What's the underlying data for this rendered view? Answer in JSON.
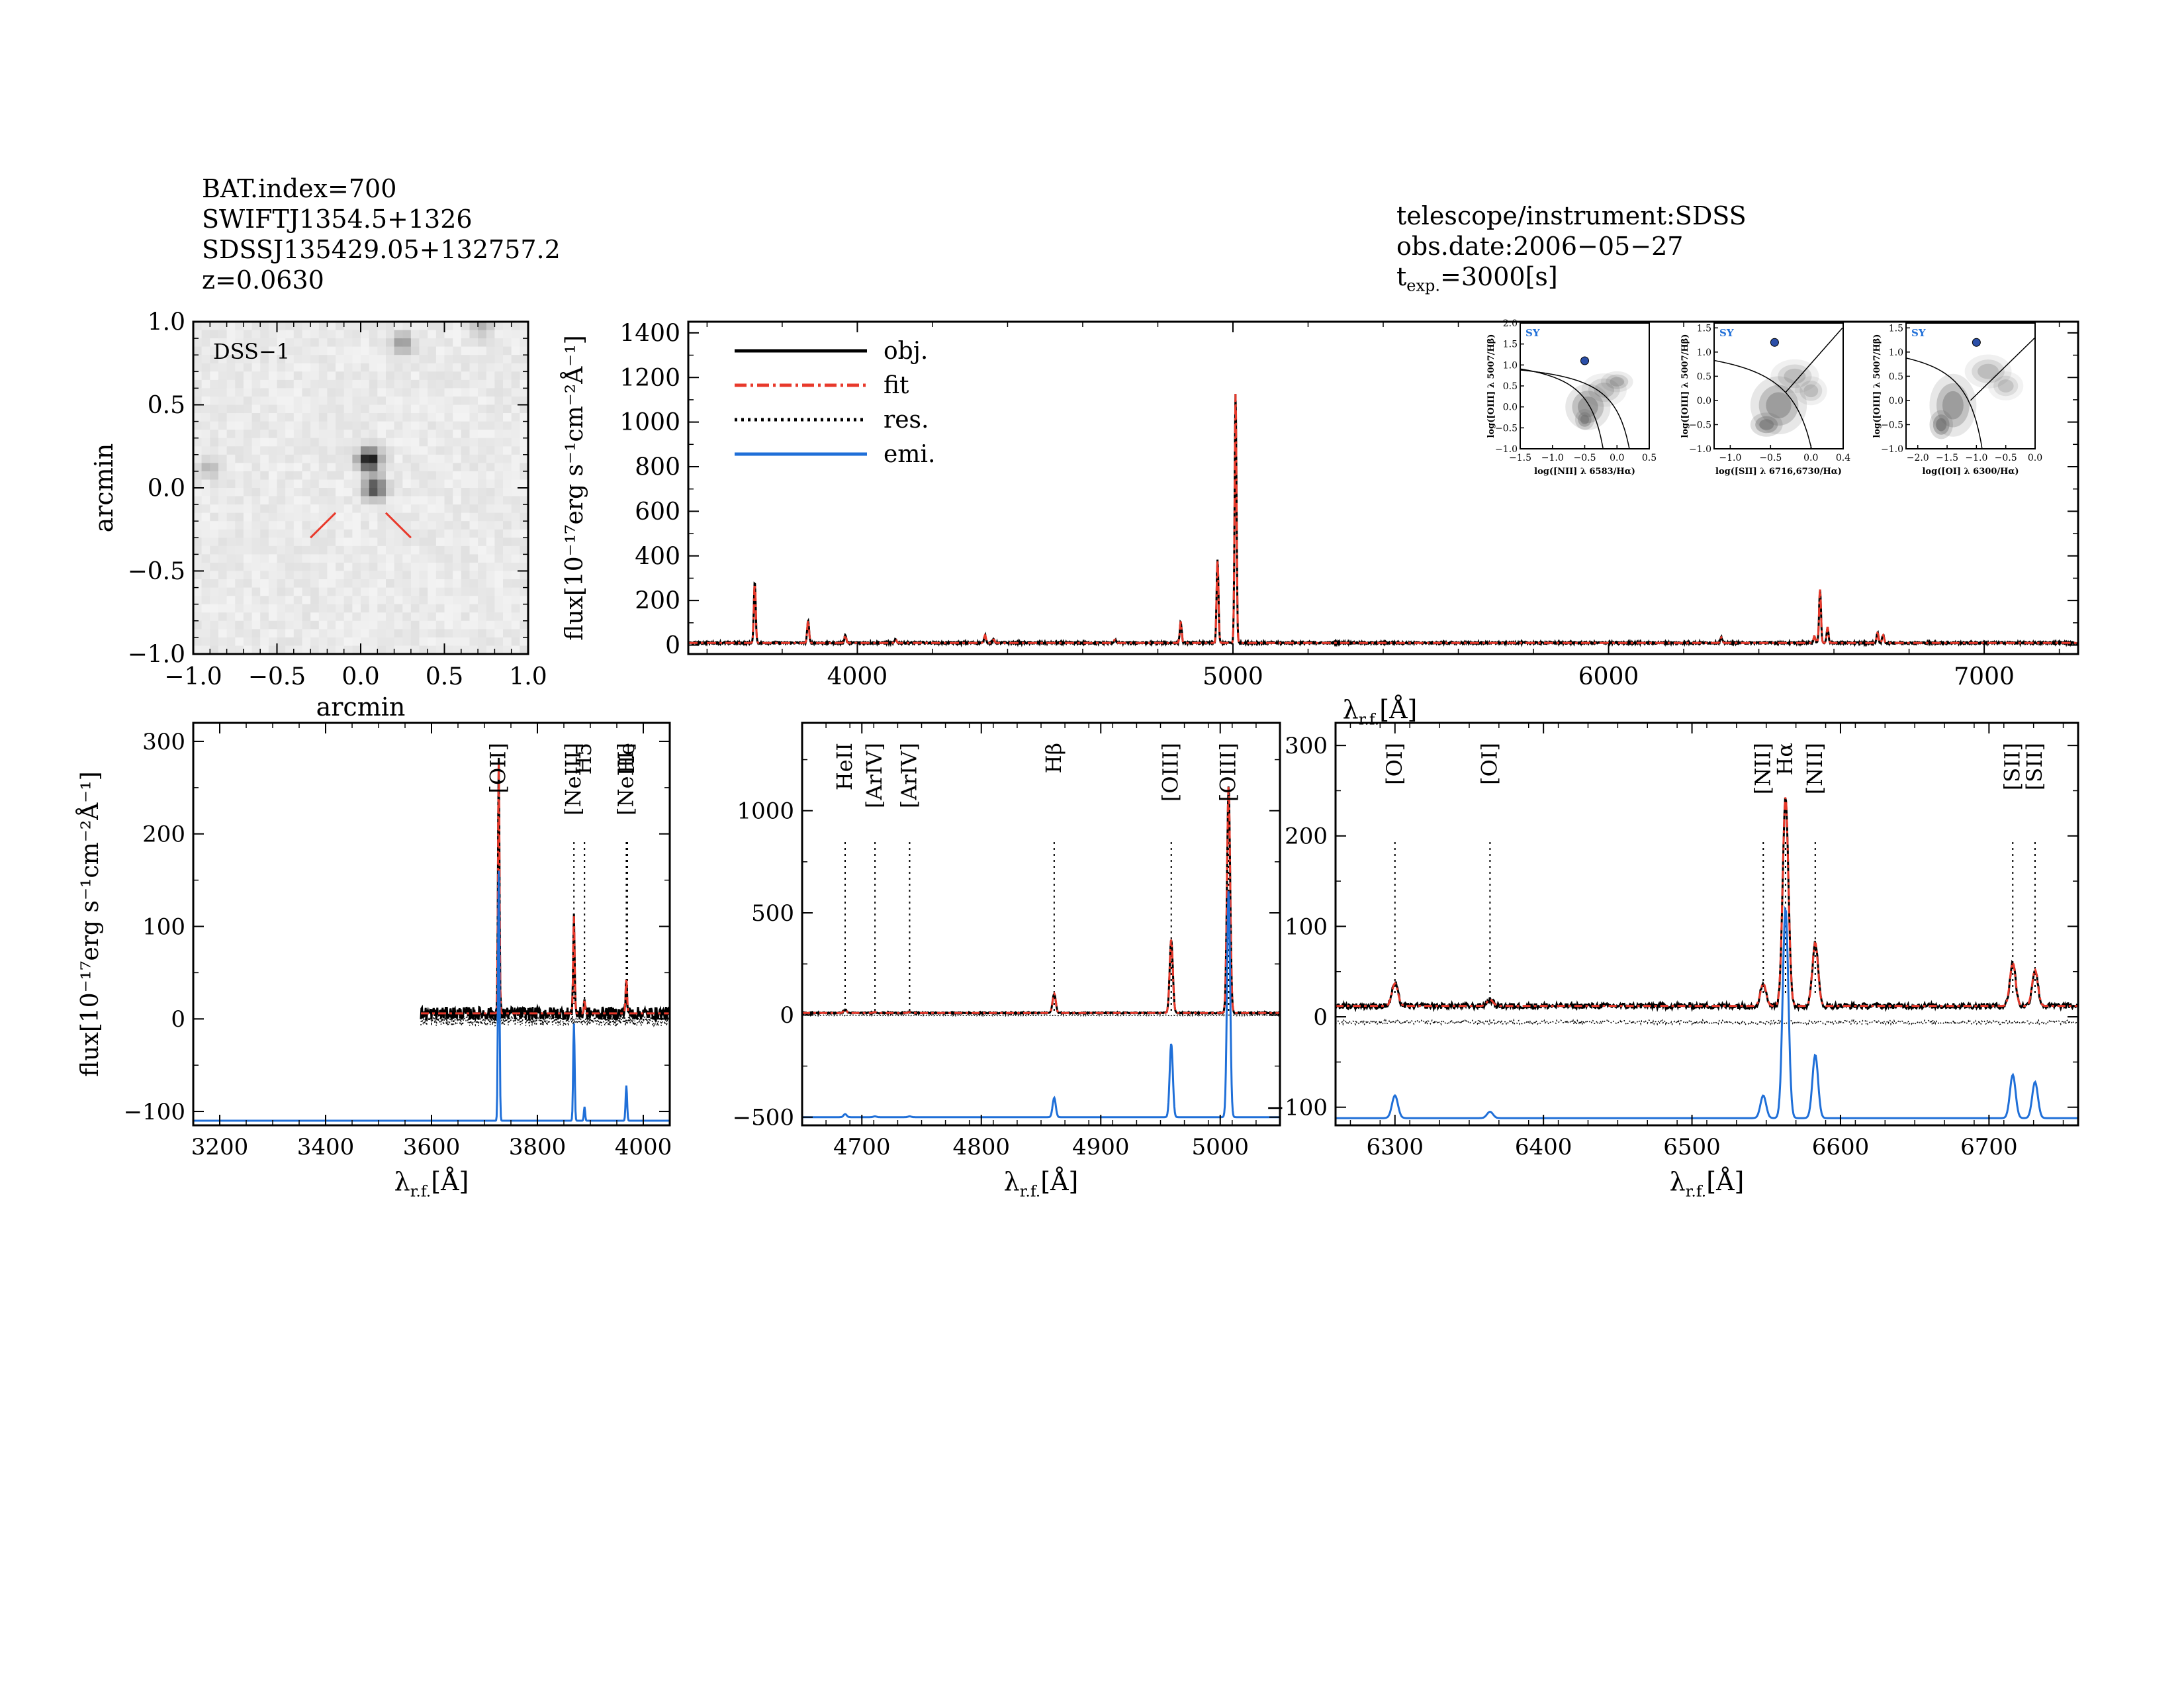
{
  "header_left": {
    "lines": [
      "BAT.index=700",
      "SWIFTJ1354.5+1326",
      "SDSSJ135429.05+132757.2",
      "z=0.0630"
    ]
  },
  "header_right": {
    "telescope": "telescope/instrument:SDSS",
    "obs_date": "obs.date:2006−05−27",
    "texp_t": "t",
    "texp_sub": "exp.",
    "texp_val": "=3000[s]"
  },
  "colors": {
    "obj": "#000000",
    "fit": "#e8392b",
    "res": "#000000",
    "emi": "#1f6fd8",
    "cutout_marker": "#e8392b",
    "bpt_point": "#2b4fa8",
    "bpt_label": "#1f6fd8"
  },
  "labels": {
    "flux_unit": "flux[10⁻¹⁷erg s⁻¹cm⁻²Å⁻¹]",
    "lambda_rf": "λ",
    "lambda_sub": "r.f.",
    "lambda_unit": "[Å]",
    "arcmin": "arcmin"
  },
  "chart_data": [
    {
      "type": "heatmap",
      "id": "image_cutout",
      "annotation": "DSS−1",
      "xlabel": "arcmin",
      "ylabel": "arcmin",
      "xlim": [
        -1.0,
        1.0
      ],
      "ylim": [
        -1.0,
        1.0
      ],
      "xticks": [
        "−1.0",
        "−0.5",
        "0.0",
        "0.5",
        "1.0"
      ],
      "yticks": [
        "−1.0",
        "−0.5",
        "0.0",
        "0.5",
        "1.0"
      ],
      "sources": [
        {
          "x": 0.05,
          "y": 0.17,
          "brightness": 1.0
        },
        {
          "x": 0.08,
          "y": 0.0,
          "brightness": 0.7
        },
        {
          "x": 0.25,
          "y": 0.87,
          "brightness": 0.35
        },
        {
          "x": -0.9,
          "y": 0.12,
          "brightness": 0.2
        },
        {
          "x": 0.72,
          "y": 0.97,
          "brightness": 0.25
        }
      ]
    },
    {
      "type": "line",
      "id": "full_spectrum",
      "xlabel": "λr.f.[Å]",
      "ylabel": "flux[10⁻¹⁷erg s⁻¹cm⁻²Å⁻¹]",
      "xlim": [
        3550,
        7250
      ],
      "ylim": [
        -40,
        1450
      ],
      "xticks": [
        4000,
        5000,
        6000,
        7000
      ],
      "yticks": [
        0,
        200,
        400,
        600,
        800,
        1000,
        1200,
        1400
      ],
      "legend": [
        "obj.",
        "fit",
        "res.",
        "emi."
      ],
      "lines": [
        {
          "center": 3727,
          "amplitude": 270,
          "sigma": 2.5
        },
        {
          "center": 3869,
          "amplitude": 100,
          "sigma": 2.5
        },
        {
          "center": 3968,
          "amplitude": 35,
          "sigma": 2.5
        },
        {
          "center": 4102,
          "amplitude": 15,
          "sigma": 2.5
        },
        {
          "center": 4340,
          "amplitude": 35,
          "sigma": 2.5
        },
        {
          "center": 4363,
          "amplitude": 15,
          "sigma": 2.5
        },
        {
          "center": 4686,
          "amplitude": 15,
          "sigma": 2.5
        },
        {
          "center": 4861,
          "amplitude": 95,
          "sigma": 2.5
        },
        {
          "center": 4959,
          "amplitude": 370,
          "sigma": 2.5
        },
        {
          "center": 5007,
          "amplitude": 1120,
          "sigma": 2.5
        },
        {
          "center": 6300,
          "amplitude": 25,
          "sigma": 2.5
        },
        {
          "center": 6548,
          "amplitude": 30,
          "sigma": 2.5
        },
        {
          "center": 6563,
          "amplitude": 240,
          "sigma": 2.5
        },
        {
          "center": 6583,
          "amplitude": 70,
          "sigma": 2.5
        },
        {
          "center": 6716,
          "amplitude": 45,
          "sigma": 2.5
        },
        {
          "center": 6731,
          "amplitude": 35,
          "sigma": 2.5
        }
      ],
      "continuum": 10
    },
    {
      "type": "scatter",
      "id": "bpt_nii",
      "badge": "SY",
      "xlabel": "log([NII] λ 6583/Hα)",
      "ylabel": "log([OIII] λ 5007/Hβ)",
      "xlim": [
        -1.5,
        0.5
      ],
      "ylim": [
        -1.0,
        2.0
      ],
      "xticks": [
        "−1.5",
        "−1.0",
        "−0.5",
        "0.0",
        "0.5"
      ],
      "yticks": [
        "−1.0",
        "−0.5",
        "0.0",
        "0.5",
        "1.0",
        "1.5",
        "2.0"
      ],
      "point": {
        "x": -0.5,
        "y": 1.1
      }
    },
    {
      "type": "scatter",
      "id": "bpt_sii",
      "badge": "SY",
      "xlabel": "log([SII] λ 6716,6730/Hα)",
      "ylabel": "log([OIII] λ 5007/Hβ)",
      "xlim": [
        -1.2,
        0.4
      ],
      "ylim": [
        -1.0,
        1.6
      ],
      "xticks": [
        "−1.0",
        "−0.5",
        "0.0",
        "0.4"
      ],
      "yticks": [
        "−1.0",
        "−0.5",
        "0.0",
        "0.5",
        "1.0",
        "1.5"
      ],
      "point": {
        "x": -0.45,
        "y": 1.2
      }
    },
    {
      "type": "scatter",
      "id": "bpt_oi",
      "badge": "SY",
      "xlabel": "log([OI] λ 6300/Hα)",
      "ylabel": "log([OIII] λ 5007/Hβ)",
      "xlim": [
        -2.2,
        0.0
      ],
      "ylim": [
        -1.0,
        1.6
      ],
      "xticks": [
        "−2.0",
        "−1.5",
        "−1.0",
        "−0.5",
        "0.0"
      ],
      "yticks": [
        "−1.0",
        "−0.5",
        "0.0",
        "0.5",
        "1.0",
        "1.5"
      ],
      "point": {
        "x": -1.0,
        "y": 1.2
      }
    },
    {
      "type": "line",
      "id": "zoom_blue",
      "xlabel": "λr.f.[Å]",
      "ylabel": "flux[10⁻¹⁷erg s⁻¹cm⁻²Å⁻¹]",
      "xlim": [
        3150,
        4050
      ],
      "ylim": [
        -115,
        320
      ],
      "xticks": [
        3200,
        3400,
        3600,
        3800,
        4000
      ],
      "yticks": [
        -100,
        0,
        100,
        200,
        300
      ],
      "data_start": 3580,
      "continuum": 6,
      "emi_offset": -110,
      "line_labels": [
        {
          "wave": 3727,
          "text": "[OII]"
        },
        {
          "wave": 3869,
          "text": "[NeIII]"
        },
        {
          "wave": 3889,
          "text": "H5"
        },
        {
          "wave": 3968,
          "text": "[NeIII]"
        },
        {
          "wave": 3970,
          "text": "He"
        }
      ],
      "lines": [
        {
          "center": 3727,
          "amplitude": 270,
          "sigma": 1.4
        },
        {
          "center": 3869,
          "amplitude": 105,
          "sigma": 1.4
        },
        {
          "center": 3889,
          "amplitude": 15,
          "sigma": 1.2
        },
        {
          "center": 3968,
          "amplitude": 38,
          "sigma": 1.4
        }
      ]
    },
    {
      "type": "line",
      "id": "zoom_hbeta",
      "xlabel": "λr.f.[Å]",
      "xlim": [
        4650,
        5050
      ],
      "ylim": [
        -540,
        1430
      ],
      "xticks": [
        4700,
        4800,
        4900,
        5000
      ],
      "yticks": [
        -500,
        0,
        500,
        1000
      ],
      "data_start": 4650,
      "continuum": 10,
      "emi_offset": -500,
      "line_labels": [
        {
          "wave": 4686,
          "text": "HeII"
        },
        {
          "wave": 4711,
          "text": "[ArIV]"
        },
        {
          "wave": 4740,
          "text": "[ArIV]"
        },
        {
          "wave": 4861,
          "text": "Hβ"
        },
        {
          "wave": 4959,
          "text": "[OIII]"
        },
        {
          "wave": 5007,
          "text": "[OIII]"
        }
      ],
      "lines": [
        {
          "center": 4686,
          "amplitude": 15,
          "sigma": 1.3
        },
        {
          "center": 4711,
          "amplitude": 4,
          "sigma": 1.3
        },
        {
          "center": 4740,
          "amplitude": 4,
          "sigma": 1.3
        },
        {
          "center": 4861,
          "amplitude": 95,
          "sigma": 1.3
        },
        {
          "center": 4959,
          "amplitude": 360,
          "sigma": 1.3
        },
        {
          "center": 5007,
          "amplitude": 1110,
          "sigma": 1.3
        }
      ]
    },
    {
      "type": "line",
      "id": "zoom_halpha",
      "xlabel": "λr.f.[Å]",
      "xlim": [
        6260,
        6760
      ],
      "ylim": [
        -120,
        325
      ],
      "xticks": [
        6300,
        6400,
        6500,
        6600,
        6700
      ],
      "yticks": [
        -100,
        0,
        100,
        200,
        300
      ],
      "data_start": 6260,
      "continuum": 12,
      "emi_offset": -112,
      "line_labels": [
        {
          "wave": 6300,
          "text": "[OI]"
        },
        {
          "wave": 6364,
          "text": "[OI]"
        },
        {
          "wave": 6548,
          "text": "[NII]"
        },
        {
          "wave": 6563,
          "text": "Hα"
        },
        {
          "wave": 6583,
          "text": "[NII]"
        },
        {
          "wave": 6716,
          "text": "[SII]"
        },
        {
          "wave": 6731,
          "text": "[SII]"
        }
      ],
      "lines": [
        {
          "center": 6300,
          "amplitude": 25,
          "sigma": 2.0
        },
        {
          "center": 6364,
          "amplitude": 7,
          "sigma": 2.0
        },
        {
          "center": 6548,
          "amplitude": 25,
          "sigma": 1.9
        },
        {
          "center": 6563,
          "amplitude": 232,
          "sigma": 1.9
        },
        {
          "center": 6583,
          "amplitude": 70,
          "sigma": 1.9
        },
        {
          "center": 6716,
          "amplitude": 48,
          "sigma": 1.9
        },
        {
          "center": 6731,
          "amplitude": 40,
          "sigma": 1.9
        }
      ]
    }
  ]
}
